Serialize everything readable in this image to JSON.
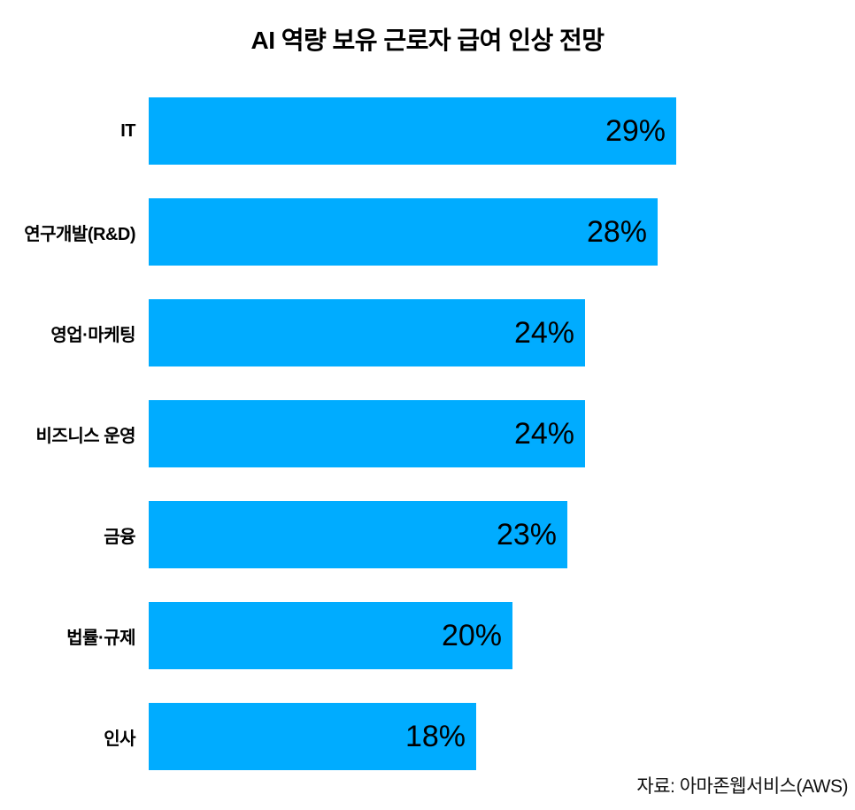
{
  "chart_data": {
    "type": "bar",
    "orientation": "horizontal",
    "title": "AI 역량 보유 근로자 급여 인상 전망",
    "categories": [
      "IT",
      "연구개발(R&D)",
      "영업·마케팅",
      "비즈니스 운영",
      "금융",
      "법률·규제",
      "인사"
    ],
    "values": [
      29,
      28,
      24,
      24,
      23,
      20,
      18
    ],
    "value_suffix": "%",
    "value_labels": [
      "29%",
      "28%",
      "24%",
      "24%",
      "23%",
      "20%",
      "18%"
    ],
    "bar_color": "#00ACFF",
    "value_label_color": "#000000",
    "xlim": [
      0,
      29
    ],
    "grid": false,
    "legend": "none",
    "axes_visible": false,
    "source": "자료: 아마존웹서비스(AWS)"
  }
}
